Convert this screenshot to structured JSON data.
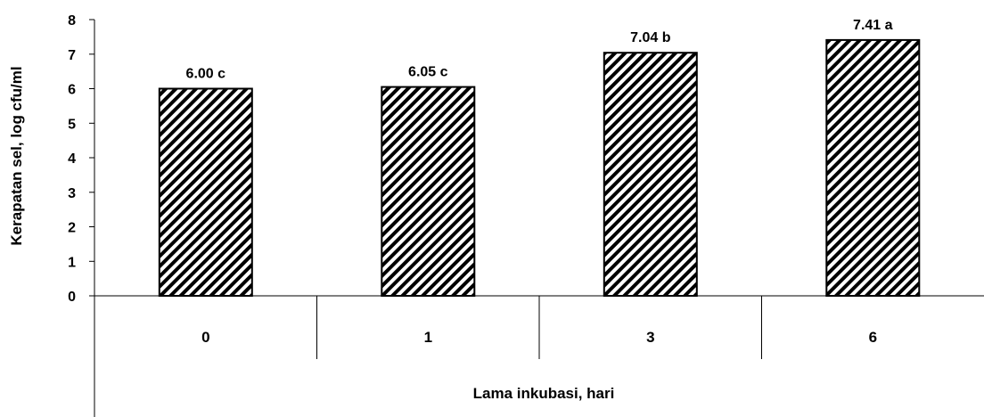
{
  "chart_data": {
    "type": "bar",
    "categories": [
      "0",
      "1",
      "3",
      "6"
    ],
    "values": [
      6.0,
      6.05,
      7.04,
      7.41
    ],
    "data_labels": [
      "6.00 c",
      "6.05 c",
      "7.04 b",
      "7.41 a"
    ],
    "xlabel": "Lama inkubasi,  hari",
    "ylabel": "Kerapatan sel, log cfu/ml",
    "ylim": [
      0,
      8
    ],
    "yticks": [
      "0",
      "1",
      "2",
      "3",
      "4",
      "5",
      "6",
      "7",
      "8"
    ],
    "grid": false,
    "legend": "none",
    "bar_fill": "diagonal-hatch",
    "colors": {
      "bar_stripe": "#000000",
      "bar_background": "#ffffff",
      "axis": "#000000"
    }
  }
}
